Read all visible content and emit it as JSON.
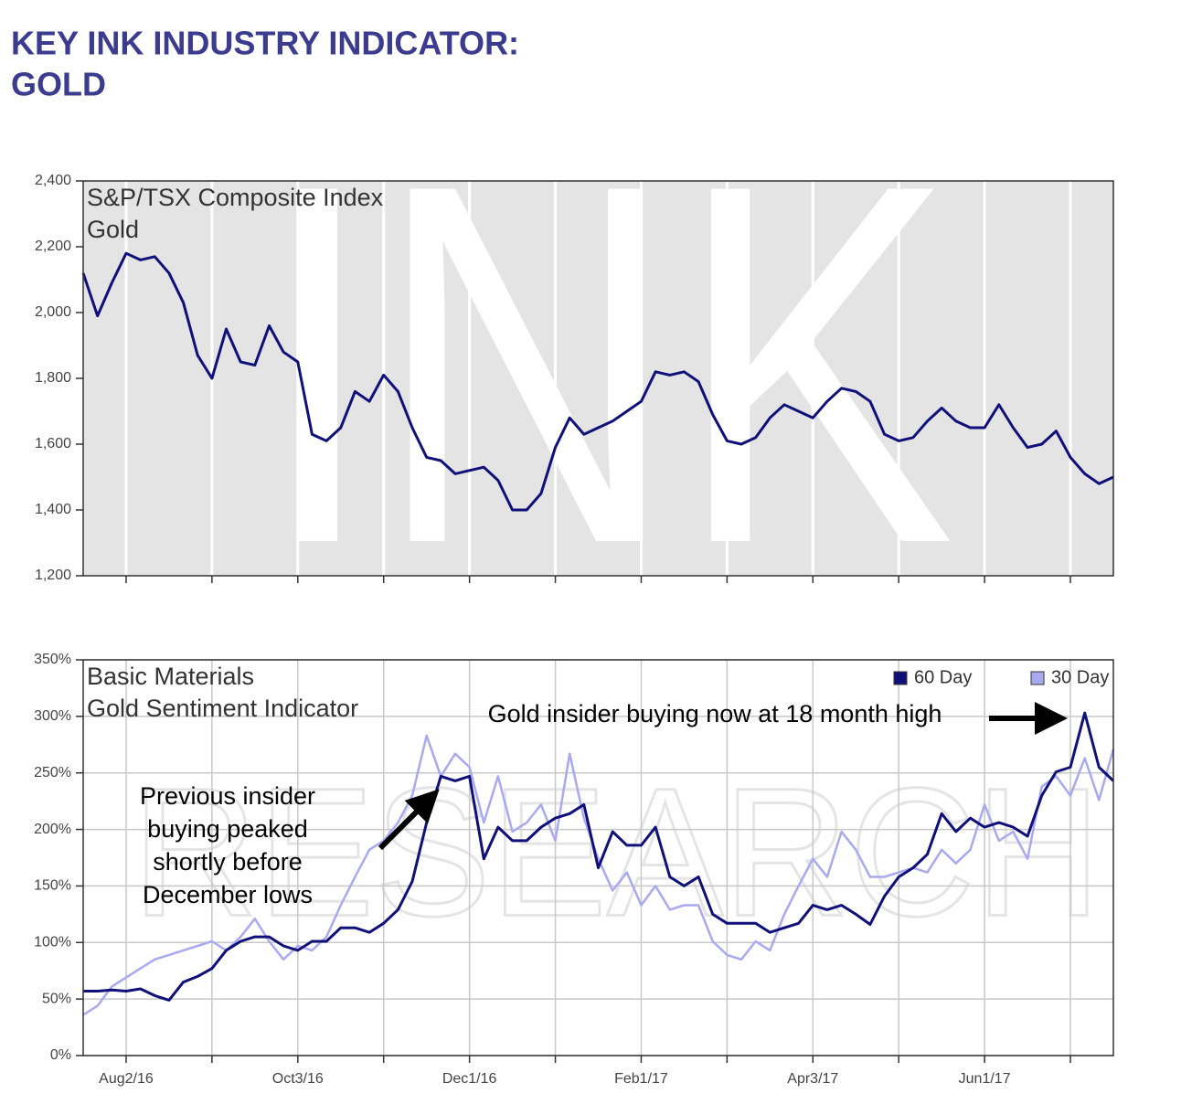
{
  "header": {
    "title_lines": [
      "KEY INK INDUSTRY INDICATOR:",
      "GOLD"
    ]
  },
  "chart_data": [
    {
      "type": "line",
      "title": "S&P/TSX Composite Index",
      "subtitle": "Gold",
      "watermark": "INK",
      "color": "#10107a",
      "grid": "x",
      "ylim": [
        1200,
        2400
      ],
      "yticks": [
        {
          "value": 1200,
          "label": "1,200"
        },
        {
          "value": 1400,
          "label": "1,400"
        },
        {
          "value": 1600,
          "label": "1,600"
        },
        {
          "value": 1800,
          "label": "1,800"
        },
        {
          "value": 2000,
          "label": "2,000"
        },
        {
          "value": 2200,
          "label": "2,200"
        },
        {
          "value": 2400,
          "label": "2,400"
        }
      ],
      "values": [
        2120,
        1990,
        2090,
        2180,
        2160,
        2170,
        2120,
        2030,
        1870,
        1800,
        1950,
        1850,
        1840,
        1960,
        1880,
        1850,
        1630,
        1610,
        1650,
        1760,
        1730,
        1810,
        1760,
        1650,
        1560,
        1550,
        1510,
        1520,
        1530,
        1490,
        1400,
        1400,
        1450,
        1590,
        1680,
        1630,
        1650,
        1670,
        1700,
        1730,
        1820,
        1810,
        1820,
        1790,
        1690,
        1610,
        1600,
        1620,
        1680,
        1720,
        1700,
        1680,
        1730,
        1770,
        1760,
        1730,
        1630,
        1610,
        1620,
        1670,
        1710,
        1670,
        1650,
        1650,
        1720,
        1650,
        1590,
        1600,
        1640,
        1560,
        1510,
        1480,
        1500
      ]
    },
    {
      "type": "line",
      "title": "Basic Materials",
      "subtitle": "Gold Sentiment Indicator",
      "watermark": "RESEARCH",
      "grid": "both",
      "legend": "top-right",
      "ylim": [
        0,
        350
      ],
      "yticks": [
        {
          "value": 0,
          "label": "0%"
        },
        {
          "value": 50,
          "label": "50%"
        },
        {
          "value": 100,
          "label": "100%"
        },
        {
          "value": 150,
          "label": "150%"
        },
        {
          "value": 200,
          "label": "200%"
        },
        {
          "value": 250,
          "label": "250%"
        },
        {
          "value": 300,
          "label": "300%"
        },
        {
          "value": 350,
          "label": "350%"
        }
      ],
      "categories": [
        null,
        null,
        null,
        "Aug2/16",
        null,
        null,
        null,
        null,
        null,
        null,
        null,
        null,
        null,
        null,
        null,
        "Oct3/16",
        null,
        null,
        null,
        null,
        null,
        null,
        null,
        null,
        null,
        null,
        null,
        "Dec1/16",
        null,
        null,
        null,
        null,
        null,
        null,
        null,
        null,
        null,
        null,
        null,
        "Feb1/17",
        null,
        null,
        null,
        null,
        null,
        null,
        null,
        null,
        null,
        null,
        null,
        "Apr3/17",
        null,
        null,
        null,
        null,
        null,
        null,
        null,
        null,
        null,
        null,
        null,
        "Jun1/17",
        null,
        null,
        null,
        null,
        null,
        null,
        null,
        null,
        null
      ],
      "series": [
        {
          "name": "60 Day",
          "color": "#10107a",
          "values": [
            57,
            57,
            58,
            57,
            59,
            53,
            49,
            65,
            70,
            77,
            93,
            101,
            105,
            105,
            97,
            93,
            101,
            101,
            113,
            113,
            109,
            117,
            129,
            154,
            206,
            247,
            243,
            247,
            174,
            202,
            190,
            190,
            202,
            210,
            214,
            222,
            166,
            198,
            186,
            186,
            202,
            158,
            150,
            158,
            125,
            117,
            117,
            117,
            109,
            113,
            117,
            133,
            129,
            133,
            125,
            116,
            141,
            158,
            166,
            178,
            214,
            198,
            210,
            202,
            206,
            202,
            194,
            230,
            251,
            255,
            303,
            255,
            243
          ]
        },
        {
          "name": "30 Day",
          "color": "#a9a9f2",
          "values": [
            36,
            44,
            61,
            69,
            77,
            85,
            89,
            93,
            97,
            101,
            93,
            105,
            121,
            101,
            85,
            97,
            93,
            105,
            133,
            158,
            182,
            190,
            206,
            230,
            283,
            247,
            267,
            255,
            206,
            247,
            198,
            206,
            222,
            190,
            267,
            210,
            174,
            146,
            162,
            133,
            150,
            129,
            133,
            133,
            101,
            89,
            85,
            101,
            93,
            125,
            150,
            174,
            158,
            198,
            182,
            158,
            158,
            162,
            166,
            162,
            182,
            170,
            182,
            222,
            190,
            198,
            174,
            238,
            247,
            230,
            263,
            226,
            271
          ]
        }
      ],
      "annotations": [
        {
          "lines": [
            "Gold insider buying now at 18 month high"
          ]
        },
        {
          "lines": [
            "Previous insider",
            "buying peaked",
            "shortly before",
            "December lows"
          ]
        }
      ]
    }
  ]
}
